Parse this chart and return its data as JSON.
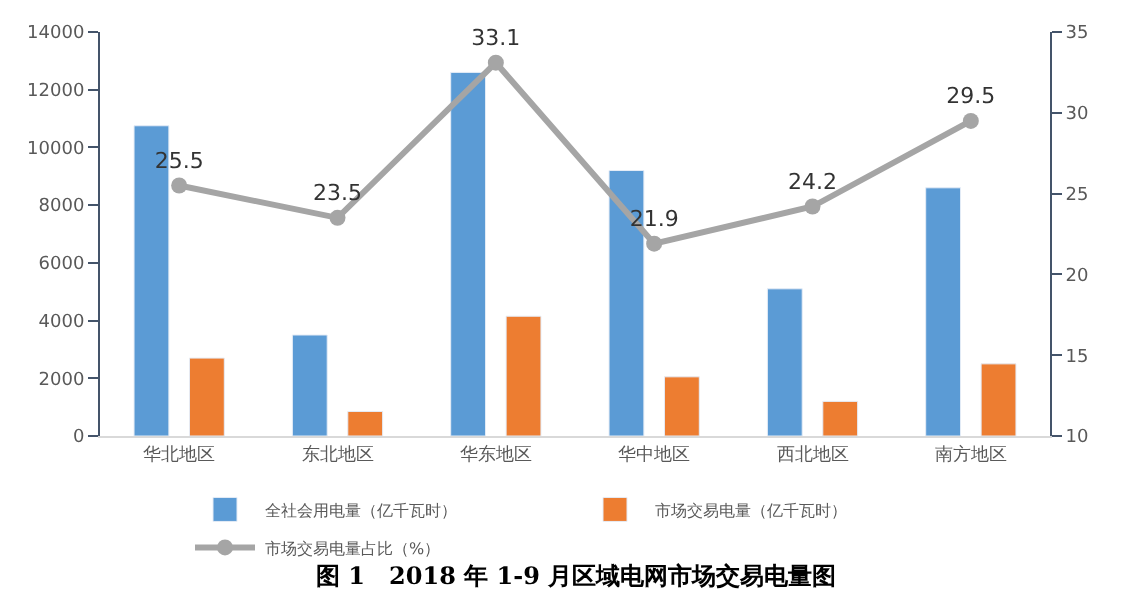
{
  "chart_data": {
    "type": "bar",
    "categories": [
      "华北地区",
      "东北地区",
      "华东地区",
      "华中地区",
      "西北地区",
      "南方地区"
    ],
    "series": [
      {
        "name": "全社会用电量（亿千瓦时）",
        "color": "#5b9bd5",
        "values": [
          10750,
          3500,
          12600,
          9200,
          5100,
          8600
        ]
      },
      {
        "name": "市场交易电量（亿千瓦时）",
        "color": "#ed7d31",
        "values": [
          2700,
          850,
          4150,
          2050,
          1200,
          2500
        ]
      },
      {
        "name": "市场交易电量占比（%）",
        "color": "#a5a5a5",
        "type": "line",
        "axis": "y2",
        "marker": "circle",
        "values": [
          25.5,
          23.5,
          33.1,
          21.9,
          24.2,
          29.5
        ],
        "value_labels": [
          "25.5",
          "23.5",
          "33.1",
          "21.9",
          "24.2",
          "29.5"
        ]
      }
    ],
    "ylim": [
      0,
      14000
    ],
    "yticks": [
      0,
      2000,
      4000,
      6000,
      8000,
      10000,
      12000,
      14000
    ],
    "y2lim": [
      10,
      35
    ],
    "y2ticks": [
      10,
      15,
      20,
      25,
      30,
      35
    ],
    "legend": "bottom",
    "annotations": [
      "图 1　2018 年 1-9 月区域电网市场交易电量图"
    ]
  }
}
